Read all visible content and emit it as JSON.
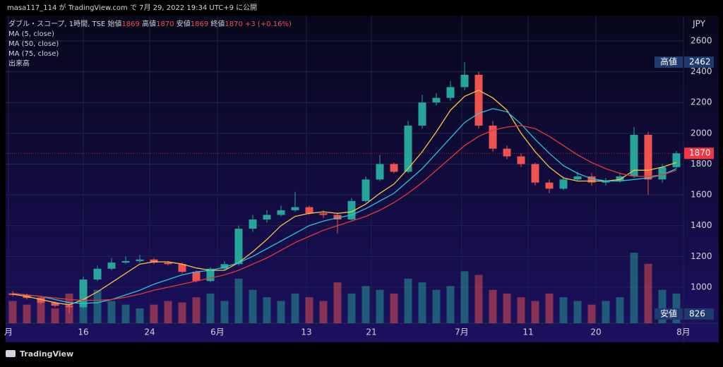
{
  "header": "masa117_114 が TradingView.com で 7月 29, 2022 19:34 UTC+9 に公開",
  "footer": "TradingView",
  "chart_data": {
    "type": "candlestick",
    "title": "ダブル・スコープ, 1時間, TSE",
    "ohlc_fields": [
      {
        "label": "始値",
        "value": 1869
      },
      {
        "label": "高値",
        "value": 1870
      },
      {
        "label": "安値",
        "value": 1869
      },
      {
        "label": "終値",
        "value": 1870
      }
    ],
    "change": "+3 (+0.16%)",
    "volume_name": "出来高",
    "axis_unit": "JPY",
    "up_color": "#26a69a",
    "down_color": "#ef5350",
    "open": [
      960,
      950,
      930,
      900,
      880,
      870,
      1050,
      1120,
      1160,
      1170,
      1180,
      1160,
      1150,
      1100,
      1040,
      1120,
      1150,
      1380,
      1440,
      1470,
      1500,
      1520,
      1480,
      1470,
      1440,
      1560,
      1700,
      1800,
      1750,
      2050,
      2200,
      2230,
      2300,
      2380,
      2050,
      1900,
      1850,
      1800,
      1680,
      1640,
      1700,
      1720,
      1680,
      1690,
      1720,
      1990,
      1700,
      1780
    ],
    "high": [
      975,
      960,
      940,
      910,
      890,
      1070,
      1140,
      1190,
      1200,
      1210,
      1190,
      1170,
      1160,
      1110,
      1130,
      1170,
      1400,
      1470,
      1500,
      1530,
      1620,
      1530,
      1500,
      1480,
      1580,
      1720,
      1860,
      1810,
      2080,
      2250,
      2260,
      2340,
      2462,
      2400,
      2080,
      1920,
      1870,
      1810,
      1700,
      1720,
      1750,
      1740,
      1710,
      1740,
      2040,
      2010,
      1800,
      1885
    ],
    "low": [
      940,
      920,
      890,
      870,
      826,
      860,
      1040,
      1110,
      1150,
      1160,
      1150,
      1140,
      1090,
      1030,
      1030,
      1110,
      1140,
      1360,
      1420,
      1460,
      1490,
      1470,
      1450,
      1350,
      1430,
      1550,
      1690,
      1740,
      1740,
      2030,
      2180,
      2210,
      2280,
      2030,
      1880,
      1830,
      1780,
      1660,
      1610,
      1630,
      1690,
      1660,
      1660,
      1680,
      1710,
      1600,
      1680,
      1770
    ],
    "close": [
      950,
      930,
      900,
      880,
      870,
      1050,
      1120,
      1160,
      1170,
      1180,
      1160,
      1150,
      1100,
      1040,
      1120,
      1150,
      1380,
      1440,
      1470,
      1500,
      1520,
      1480,
      1470,
      1440,
      1560,
      1700,
      1800,
      1750,
      2050,
      2200,
      2230,
      2300,
      2380,
      2050,
      1900,
      1850,
      1800,
      1680,
      1640,
      1700,
      1720,
      1680,
      1690,
      1720,
      1990,
      1700,
      1780,
      1870
    ],
    "volume": [
      30,
      25,
      35,
      20,
      40,
      55,
      45,
      30,
      25,
      20,
      25,
      30,
      28,
      35,
      40,
      30,
      60,
      45,
      35,
      30,
      40,
      35,
      30,
      55,
      40,
      50,
      45,
      40,
      60,
      55,
      45,
      50,
      70,
      65,
      45,
      40,
      35,
      30,
      40,
      35,
      30,
      25,
      30,
      35,
      95,
      80,
      45,
      40
    ],
    "series": [
      {
        "name": "MA (5, close)",
        "color": "#f5c542",
        "values": [
          955,
          940,
          920,
          900,
          885,
          920,
          970,
          1030,
          1090,
          1150,
          1165,
          1165,
          1150,
          1125,
          1110,
          1110,
          1160,
          1230,
          1310,
          1400,
          1460,
          1480,
          1490,
          1480,
          1490,
          1540,
          1610,
          1670,
          1770,
          1880,
          2010,
          2150,
          2240,
          2280,
          2230,
          2150,
          2000,
          1880,
          1780,
          1710,
          1690,
          1690,
          1690,
          1700,
          1760,
          1760,
          1780,
          1810
        ]
      },
      {
        "name": "MA (50, close)",
        "color": "#26c6da",
        "values": [
          960,
          950,
          940,
          920,
          900,
          895,
          900,
          920,
          950,
          980,
          1020,
          1050,
          1080,
          1100,
          1110,
          1130,
          1160,
          1200,
          1250,
          1300,
          1350,
          1400,
          1430,
          1450,
          1470,
          1510,
          1560,
          1610,
          1690,
          1770,
          1870,
          1970,
          2070,
          2130,
          2160,
          2140,
          2060,
          1960,
          1870,
          1790,
          1740,
          1705,
          1690,
          1690,
          1700,
          1710,
          1730,
          1770
        ]
      },
      {
        "name": "MA (75, close)",
        "color": "#e53935",
        "values": [
          960,
          950,
          940,
          930,
          920,
          915,
          915,
          920,
          935,
          955,
          980,
          1000,
          1020,
          1040,
          1060,
          1080,
          1110,
          1150,
          1190,
          1240,
          1290,
          1330,
          1370,
          1400,
          1430,
          1460,
          1500,
          1550,
          1610,
          1680,
          1760,
          1840,
          1920,
          1980,
          2020,
          2040,
          2050,
          2030,
          1980,
          1920,
          1860,
          1810,
          1770,
          1740,
          1720,
          1720,
          1730,
          1760
        ]
      }
    ],
    "ylim": [
      766,
      2765
    ],
    "yticks": [
      1000,
      1200,
      1400,
      1600,
      1800,
      2000,
      2200,
      2400,
      2600
    ],
    "xlim": [
      0,
      48
    ],
    "xticks": [
      {
        "value": 0.2,
        "label": "月"
      },
      {
        "value": 5.5,
        "label": "16"
      },
      {
        "value": 10.2,
        "label": "24"
      },
      {
        "value": 15,
        "label": "6月"
      },
      {
        "value": 21.3,
        "label": "13"
      },
      {
        "value": 25.9,
        "label": "21"
      },
      {
        "value": 32.3,
        "label": "7月"
      },
      {
        "value": 37,
        "label": "11"
      },
      {
        "value": 41.8,
        "label": "20"
      },
      {
        "value": 48,
        "label": "8月"
      }
    ],
    "grid": true,
    "price_labels": [
      {
        "label": "高値",
        "value": 2462,
        "color": "#1e3a6e"
      },
      {
        "value": 1870,
        "color": "#f23645"
      },
      {
        "label": "安値",
        "value": 826,
        "color": "#1e3a6e"
      }
    ]
  }
}
